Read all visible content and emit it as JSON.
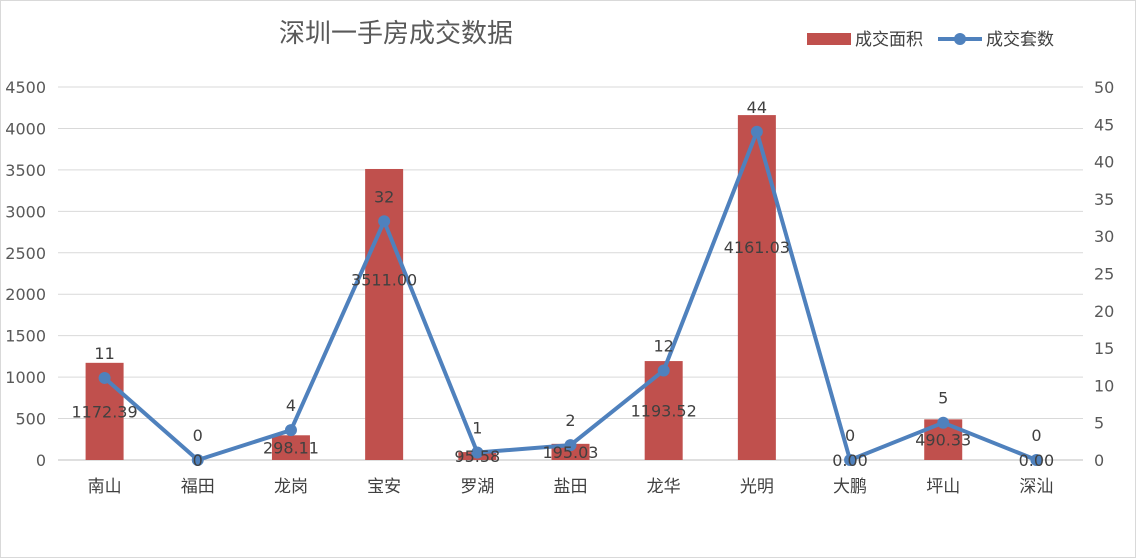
{
  "chart_data": {
    "type": "bar",
    "title": "深圳一手房成交数据",
    "categories": [
      "南山",
      "福田",
      "龙岗",
      "宝安",
      "罗湖",
      "盐田",
      "龙华",
      "光明",
      "大鹏",
      "坪山",
      "深汕"
    ],
    "series": [
      {
        "name": "成交面积",
        "type": "bar",
        "axis": "left",
        "color": "#c0504d",
        "values": [
          1172.39,
          0,
          298.11,
          3511.0,
          95.58,
          195.03,
          1193.52,
          4161.03,
          0,
          490.33,
          0
        ],
        "labels": [
          "1172.39",
          "0",
          "298.11",
          "3511.00",
          "95.58",
          "195.03",
          "1193.52",
          "4161.03",
          "0.00",
          "490.33",
          "0.00"
        ]
      },
      {
        "name": "成交套数",
        "type": "line",
        "axis": "right",
        "color": "#4f81bd",
        "values": [
          11,
          0,
          4,
          32,
          1,
          2,
          12,
          44,
          0,
          5,
          0
        ],
        "labels": [
          "11",
          "0",
          "4",
          "32",
          "1",
          "2",
          "12",
          "44",
          "0",
          "5",
          "0"
        ]
      }
    ],
    "y_left": {
      "min": 0,
      "max": 4500,
      "ticks": [
        0,
        500,
        1000,
        1500,
        2000,
        2500,
        3000,
        3500,
        4000,
        4500
      ]
    },
    "y_right": {
      "min": 0,
      "max": 50,
      "ticks": [
        0,
        5,
        10,
        15,
        20,
        25,
        30,
        35,
        40,
        45,
        50
      ]
    },
    "grid": true,
    "legend": "top-right"
  }
}
